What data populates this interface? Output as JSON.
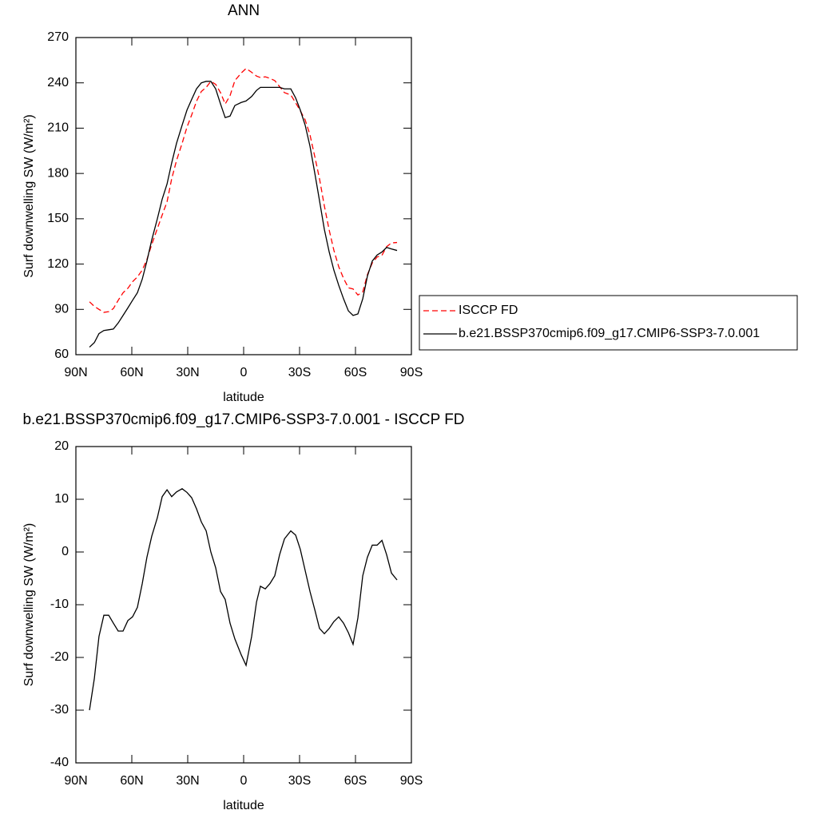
{
  "chart_data": [
    {
      "type": "line",
      "title": "ANN",
      "xlabel": "latitude",
      "ylabel": "Surf downwelling SW (W/m²)",
      "xlim": [
        90,
        -90
      ],
      "xticks": [
        {
          "value": 90,
          "label": "90N"
        },
        {
          "value": 60,
          "label": "60N"
        },
        {
          "value": 30,
          "label": "30N"
        },
        0,
        {
          "value": -30,
          "label": "30S"
        },
        {
          "value": -60,
          "label": "60S"
        },
        {
          "value": -90,
          "label": "90S"
        }
      ],
      "ylim": [
        60,
        270
      ],
      "yticks": [
        60,
        90,
        120,
        150,
        180,
        210,
        240,
        270
      ],
      "legend": "outside-right",
      "x": [
        82.7,
        80.1,
        77.6,
        75,
        72.4,
        69.9,
        67.3,
        64.7,
        62.1,
        59.6,
        57,
        54.4,
        51.9,
        49.3,
        46.3,
        43.7,
        41.1,
        38.6,
        36,
        33,
        30.4,
        27.9,
        25.3,
        22.7,
        20.1,
        17.6,
        15,
        12.4,
        9.9,
        7.3,
        4.7,
        1.3,
        -1.3,
        -4.3,
        -6.9,
        -9,
        -11.6,
        -14.1,
        -16.7,
        -19.3,
        -21.9,
        -25.3,
        -27.9,
        -30.4,
        -33,
        -35.6,
        -38.2,
        -40.7,
        -43.3,
        -45.9,
        -48.4,
        -51,
        -53.6,
        -56.2,
        -58.7,
        -61.3,
        -63.9,
        -66.4,
        -69,
        -71.6,
        -74.2,
        -76.7,
        -79.3,
        -82.3
      ],
      "series": [
        {
          "name": "ISCCP FD",
          "color": "#ff0000",
          "linestyle": "dashed",
          "values": [
            95,
            92,
            90,
            88,
            88.5,
            90.5,
            96,
            101,
            104,
            108.3,
            111.5,
            116,
            123,
            133,
            143.5,
            152.5,
            161.2,
            176.5,
            188.6,
            200,
            210.7,
            218.7,
            227.8,
            234.3,
            237,
            241,
            239,
            233.5,
            226,
            231.5,
            241.5,
            246.5,
            249.5,
            247,
            244.5,
            243.5,
            244,
            243,
            241.5,
            237.5,
            233.5,
            232,
            226.8,
            221.5,
            215.5,
            205.5,
            191,
            176.5,
            158.5,
            142.5,
            129.2,
            118.3,
            110.5,
            104.3,
            103.5,
            99.5,
            101.5,
            113,
            120.7,
            124.7,
            125.8,
            131.5,
            134,
            134.3
          ]
        },
        {
          "name": "b.e21.BSSP370cmip6.f09_g17.CMIP6-SSP3-7.0.001",
          "color": "#000000",
          "linestyle": "solid",
          "values": [
            65,
            68,
            74,
            76,
            76.5,
            77,
            81,
            86,
            91,
            96,
            101,
            110,
            122,
            136,
            150,
            163,
            173,
            187,
            200,
            212,
            222,
            229,
            236,
            240,
            241,
            241,
            236,
            226,
            217,
            218,
            225,
            227,
            228,
            231,
            235,
            237,
            237,
            237,
            237,
            237,
            236,
            236,
            230,
            222,
            212,
            198,
            180,
            162,
            143,
            128,
            116,
            106,
            97,
            89,
            86,
            87,
            97,
            112,
            122,
            126,
            128,
            131,
            130,
            129
          ]
        }
      ]
    },
    {
      "type": "line",
      "title": "b.e21.BSSP370cmip6.f09_g17.CMIP6-SSP3-7.0.001 - ISCCP FD",
      "xlabel": "latitude",
      "ylabel": "Surf downwelling SW (W/m²)",
      "xlim": [
        90,
        -90
      ],
      "xticks": [
        {
          "value": 90,
          "label": "90N"
        },
        {
          "value": 60,
          "label": "60N"
        },
        {
          "value": 30,
          "label": "30N"
        },
        0,
        {
          "value": -30,
          "label": "30S"
        },
        {
          "value": -60,
          "label": "60S"
        },
        {
          "value": -90,
          "label": "90S"
        }
      ],
      "ylim": [
        -40,
        20
      ],
      "yticks": [
        -40,
        -30,
        -20,
        -10,
        0,
        10,
        20
      ],
      "x": [
        82.7,
        80.1,
        77.6,
        75,
        72.4,
        69.9,
        67.3,
        64.7,
        62.1,
        59.6,
        57,
        54.4,
        51.9,
        49.3,
        46.3,
        43.7,
        41.1,
        38.6,
        36,
        33,
        30.4,
        27.9,
        25.3,
        22.7,
        20.1,
        17.6,
        15,
        12.4,
        9.9,
        7.3,
        4.7,
        1.3,
        -1.3,
        -4.3,
        -6.9,
        -9,
        -11.6,
        -14.1,
        -16.7,
        -19.3,
        -21.9,
        -25.3,
        -27.9,
        -30.4,
        -33,
        -35.6,
        -38.2,
        -40.7,
        -43.3,
        -45.9,
        -48.4,
        -51,
        -53.6,
        -56.2,
        -58.7,
        -61.3,
        -63.9,
        -66.4,
        -69,
        -71.6,
        -74.2,
        -76.7,
        -79.3,
        -82.3
      ],
      "series": [
        {
          "color": "#000000",
          "linestyle": "solid",
          "values": [
            -30,
            -24,
            -16,
            -12,
            -12,
            -13.5,
            -15,
            -15,
            -13,
            -12.3,
            -10.5,
            -6,
            -1,
            3,
            6.5,
            10.5,
            11.8,
            10.5,
            11.4,
            12,
            11.3,
            10.3,
            8.2,
            5.7,
            4,
            0,
            -3,
            -7.5,
            -9,
            -13.5,
            -16.5,
            -19.5,
            -21.5,
            -16,
            -9.5,
            -6.5,
            -7,
            -6,
            -4.5,
            -0.5,
            2.5,
            4,
            3.2,
            0.5,
            -3.5,
            -7.5,
            -11,
            -14.5,
            -15.5,
            -14.5,
            -13.2,
            -12.3,
            -13.5,
            -15.3,
            -17.5,
            -12.5,
            -4.5,
            -1,
            1.3,
            1.3,
            2.2,
            -0.5,
            -4,
            -5.3
          ]
        }
      ]
    }
  ]
}
